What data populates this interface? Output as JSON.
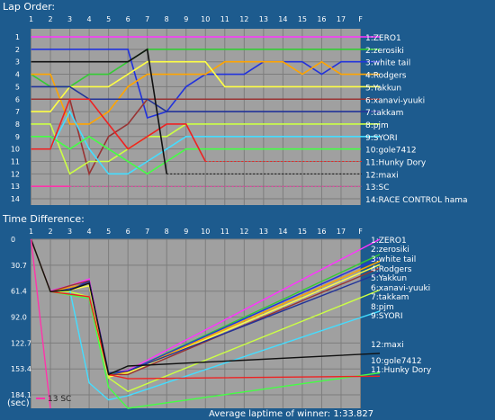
{
  "chart_data": [
    {
      "type": "line",
      "title": "Lap Order:",
      "x_ticks": [
        "1",
        "2",
        "3",
        "4",
        "5",
        "6",
        "7",
        "8",
        "9",
        "10",
        "11",
        "12",
        "13",
        "14",
        "15",
        "16",
        "17",
        "F"
      ],
      "y_ticks": [
        "1",
        "2",
        "3",
        "4",
        "5",
        "6",
        "7",
        "8",
        "9",
        "10",
        "11",
        "12",
        "13",
        "14"
      ],
      "ylim": [
        1,
        14
      ],
      "y_inverted": true,
      "grid": true,
      "series": [
        {
          "name": "1:ZERO1",
          "color": "#ff33ff",
          "x": [
            0,
            1,
            2,
            3,
            4,
            5,
            6,
            7,
            8,
            9,
            10,
            11,
            12,
            13,
            14,
            15,
            16,
            17,
            18
          ],
          "y": [
            1,
            1,
            1,
            1,
            1,
            1,
            1,
            1,
            1,
            1,
            1,
            1,
            1,
            1,
            1,
            1,
            1,
            1,
            1
          ]
        },
        {
          "name": "2:zerosiki",
          "color": "#33cc33",
          "x": [
            0,
            1,
            2,
            3,
            4,
            5,
            6,
            7,
            8,
            9,
            10,
            11,
            12,
            13,
            14,
            15,
            16,
            17,
            18
          ],
          "y": [
            4,
            5,
            5,
            4,
            4,
            3,
            2,
            2,
            2,
            2,
            2,
            2,
            2,
            2,
            2,
            2,
            2,
            2,
            2
          ]
        },
        {
          "name": "3:white tail",
          "color": "#2233dd",
          "x": [
            0,
            1,
            2,
            3,
            4,
            5,
            6,
            7,
            8,
            9,
            10,
            11,
            12,
            13,
            14,
            15,
            16,
            17,
            18
          ],
          "y": [
            2,
            2,
            2,
            2,
            2,
            2,
            7.5,
            7,
            5,
            4,
            4,
            4,
            3,
            3,
            3,
            4,
            3,
            3,
            3
          ]
        },
        {
          "name": "4:Rodgers",
          "color": "#ffa500",
          "x": [
            0,
            1,
            2,
            3,
            4,
            5,
            6,
            7,
            8,
            9,
            10,
            11,
            12,
            13,
            14,
            15,
            16,
            17,
            18
          ],
          "y": [
            4,
            4,
            8,
            8,
            7,
            5,
            4,
            4,
            4,
            4,
            3,
            3,
            3,
            3,
            4,
            3,
            4,
            4,
            4
          ]
        },
        {
          "name": "5:Yakkun",
          "color": "#ffff44",
          "x": [
            0,
            1,
            2,
            3,
            4,
            5,
            6,
            7,
            8,
            9,
            10,
            11,
            12,
            13,
            14,
            15,
            16,
            17,
            18
          ],
          "y": [
            7,
            7,
            5,
            5,
            5,
            4,
            3,
            3,
            3,
            3,
            5,
            5,
            5,
            5,
            5,
            5,
            5,
            5,
            5
          ]
        },
        {
          "name": "6:xanavi-yuuki",
          "color": "#993333",
          "x": [
            0,
            1,
            2,
            3,
            4,
            5,
            6,
            7,
            8,
            9,
            10,
            11,
            12,
            13,
            14,
            15,
            16,
            17,
            18
          ],
          "y": [
            6,
            6,
            6,
            12,
            9,
            8,
            6,
            6,
            6,
            6,
            6,
            6,
            6,
            6,
            6,
            6,
            6,
            6,
            6
          ]
        },
        {
          "name": "7:takkam",
          "color": "#223399",
          "x": [
            0,
            1,
            2,
            3,
            4,
            5,
            6,
            7,
            8,
            9,
            10,
            11,
            12,
            13,
            14,
            15,
            16,
            17,
            18
          ],
          "y": [
            5,
            5,
            5,
            6,
            6,
            6,
            6,
            7,
            7,
            7,
            7,
            7,
            7,
            7,
            7,
            7,
            7,
            7,
            7
          ]
        },
        {
          "name": "8:pjm",
          "color": "#ccff44",
          "x": [
            0,
            1,
            2,
            3,
            4,
            5,
            6,
            7,
            8,
            9,
            10,
            11,
            12,
            13,
            14,
            15,
            16,
            17,
            18
          ],
          "y": [
            8,
            8,
            12,
            11,
            11,
            10,
            9,
            9,
            8,
            8,
            8,
            8,
            8,
            8,
            8,
            8,
            8,
            8,
            8
          ]
        },
        {
          "name": "9:SYORI",
          "color": "#44ddff",
          "x": [
            0,
            1,
            2,
            3,
            4,
            5,
            6,
            7,
            8,
            9,
            10,
            11,
            12,
            13,
            14,
            15,
            16,
            17,
            18
          ],
          "y": [
            10,
            10,
            7,
            10,
            12,
            12,
            11,
            10,
            9,
            9,
            9,
            9,
            9,
            9,
            9,
            9,
            9,
            9,
            9
          ]
        },
        {
          "name": "10:gole7412",
          "color": "#44ff44",
          "x": [
            0,
            1,
            2,
            3,
            4,
            5,
            6,
            7,
            8,
            9,
            10,
            11,
            12,
            13,
            14,
            15,
            16,
            17
          ],
          "y": [
            9,
            9,
            10,
            9,
            10,
            11,
            12,
            11,
            10,
            10,
            10,
            10,
            10,
            10,
            10,
            10,
            10,
            10
          ]
        },
        {
          "name": "11:Hunky Dory",
          "color": "#ee2222",
          "x": [
            0,
            1,
            2,
            3,
            4,
            5,
            6,
            7,
            8,
            9
          ],
          "y": [
            10,
            10,
            6,
            6,
            8,
            10,
            9,
            8,
            8,
            11
          ]
        },
        {
          "name": "12:maxi",
          "color": "#111111",
          "x": [
            0,
            1,
            2,
            3,
            4,
            5,
            6,
            7
          ],
          "y": [
            3,
            3,
            3,
            3,
            3,
            3,
            2,
            12
          ]
        },
        {
          "name": "13:SC",
          "color": "#ff33aa",
          "x": [
            0,
            1,
            2
          ],
          "y": [
            13,
            13,
            13
          ]
        },
        {
          "name": "14:RACE CONTROL hama",
          "color": "#ffffff",
          "x": [],
          "y": []
        }
      ]
    },
    {
      "type": "line",
      "title": "Time Difference:",
      "x_ticks": [
        "1",
        "2",
        "3",
        "4",
        "5",
        "6",
        "7",
        "8",
        "9",
        "10",
        "11",
        "12",
        "13",
        "14",
        "15",
        "16",
        "17",
        "F"
      ],
      "y_ticks": [
        "0",
        "30.7",
        "61.4",
        "92.0",
        "122.7",
        "153.4",
        "184.1"
      ],
      "ylim": [
        0,
        200
      ],
      "y_inverted": true,
      "y_unit": "(sec)",
      "footer": "Average laptime of winner: 1:33.827",
      "grid": true,
      "series": [
        {
          "name": "1:ZERO1",
          "color": "#ff33ff",
          "x": [
            0,
            1,
            2,
            3,
            4,
            5,
            18
          ],
          "y": [
            0,
            61,
            55,
            47,
            159,
            155,
            0
          ]
        },
        {
          "name": "2:zerosiki",
          "color": "#33cc33",
          "x": [
            0,
            1,
            2,
            3,
            4,
            5,
            18
          ],
          "y": [
            0,
            62,
            60,
            52,
            160,
            156,
            18
          ]
        },
        {
          "name": "3:white tail",
          "color": "#2233dd",
          "x": [
            0,
            1,
            2,
            3,
            4,
            5,
            18
          ],
          "y": [
            0,
            62,
            58,
            50,
            161,
            156,
            22
          ]
        },
        {
          "name": "4:Rodgers",
          "color": "#ffa500",
          "x": [
            0,
            1,
            2,
            3,
            4,
            5,
            18
          ],
          "y": [
            0,
            62,
            57,
            52,
            162,
            157,
            26
          ]
        },
        {
          "name": "5:Yakkun",
          "color": "#ffff44",
          "x": [
            0,
            1,
            2,
            3,
            4,
            5,
            18
          ],
          "y": [
            0,
            62,
            60,
            55,
            163,
            158,
            30
          ]
        },
        {
          "name": "6:xanavi-yuuki",
          "color": "#993333",
          "x": [
            0,
            1,
            2,
            3,
            4,
            5,
            18
          ],
          "y": [
            0,
            62,
            55,
            49,
            160,
            160,
            34
          ]
        },
        {
          "name": "7:takkam",
          "color": "#223399",
          "x": [
            0,
            1,
            2,
            3,
            4,
            5,
            18
          ],
          "y": [
            0,
            62,
            60,
            50,
            158,
            156,
            40
          ]
        },
        {
          "name": "8:pjm",
          "color": "#ccff44",
          "x": [
            0,
            1,
            2,
            3,
            4,
            5,
            18
          ],
          "y": [
            0,
            62,
            62,
            68,
            164,
            180,
            60
          ]
        },
        {
          "name": "9:SYORI",
          "color": "#44ddff",
          "x": [
            0,
            1,
            2,
            3,
            4,
            5,
            18
          ],
          "y": [
            0,
            62,
            60,
            170,
            190,
            185,
            85
          ]
        },
        {
          "name": "10:gole7412",
          "color": "#44ff44",
          "x": [
            0,
            1,
            2,
            3,
            4,
            5,
            18
          ],
          "y": [
            0,
            62,
            66,
            70,
            175,
            200,
            158
          ]
        },
        {
          "name": "11:Hunky Dory",
          "color": "#ee2222",
          "x": [
            0,
            1,
            2,
            3,
            4,
            5,
            18
          ],
          "y": [
            0,
            62,
            65,
            68,
            160,
            165,
            162
          ]
        },
        {
          "name": "12:maxi",
          "color": "#111111",
          "x": [
            0,
            1,
            2,
            3,
            4,
            5,
            18
          ],
          "y": [
            0,
            62,
            60,
            52,
            160,
            150,
            135
          ]
        },
        {
          "name": "13 SC",
          "color": "#ff33aa",
          "x": [
            0,
            1
          ],
          "y": [
            0,
            200
          ]
        }
      ]
    }
  ]
}
